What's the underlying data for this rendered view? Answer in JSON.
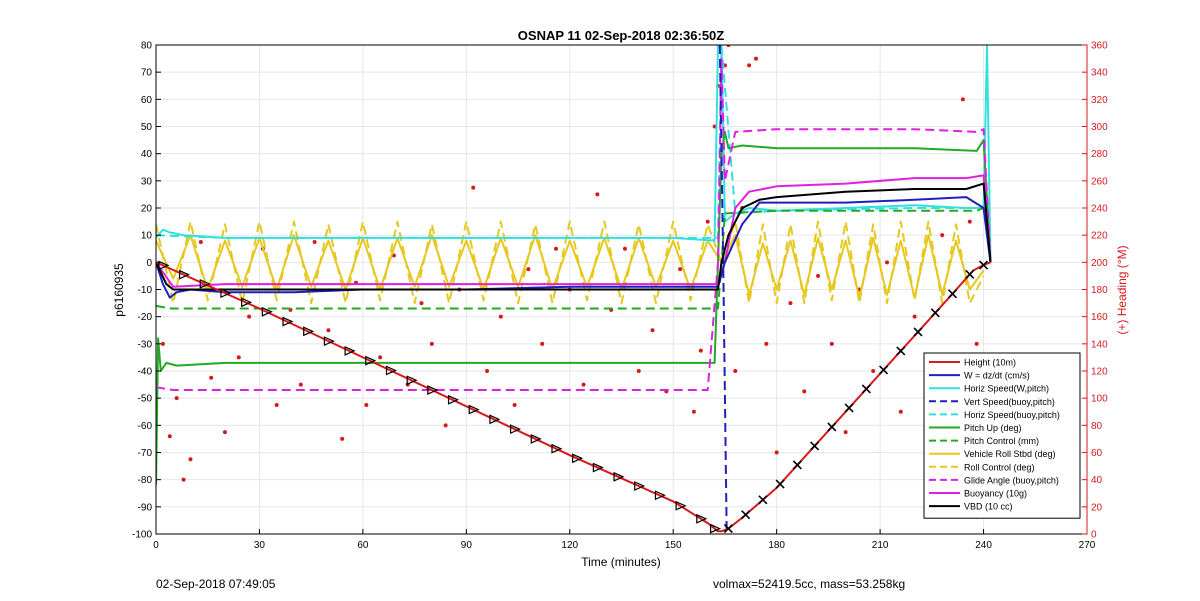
{
  "chart_data": {
    "type": "line",
    "title": "OSNAP 11 02-Sep-2018 02:36:50Z",
    "xlabel": "Time (minutes)",
    "ylabel": "p6160935",
    "y2label": "(+) Heading (°M)",
    "xlim": [
      0,
      270
    ],
    "ylim": [
      -100,
      80
    ],
    "y2lim": [
      0,
      360
    ],
    "xticks": [
      0,
      30,
      60,
      90,
      120,
      150,
      180,
      210,
      240,
      270
    ],
    "yticks": [
      -100,
      -90,
      -80,
      -70,
      -60,
      -50,
      -40,
      -30,
      -20,
      -10,
      0,
      10,
      20,
      30,
      40,
      50,
      60,
      70,
      80
    ],
    "y2ticks": [
      0,
      20,
      40,
      60,
      80,
      100,
      120,
      140,
      160,
      180,
      200,
      220,
      240,
      260,
      280,
      300,
      320,
      340,
      360
    ],
    "grid": true,
    "legend_position": "bottom-right",
    "colors": {
      "red": "#d7191c",
      "blue": "#1f1fbf",
      "cyan": "#33e0e0",
      "green": "#22aa22",
      "yellow": "#e6c820",
      "magenta": "#e020e0",
      "black": "#000000"
    },
    "series": [
      {
        "name": "Height (10m)",
        "color": "#d7191c",
        "dash": false,
        "x": [
          0,
          30,
          60,
          90,
          120,
          150,
          160,
          163,
          164,
          166,
          170,
          180,
          190,
          200,
          210,
          220,
          230,
          237,
          240,
          242
        ],
        "y": [
          0,
          -17,
          -35,
          -53,
          -71,
          -88,
          -96,
          -99,
          -99,
          -98,
          -94,
          -83,
          -69,
          -55,
          -41,
          -27,
          -13,
          -3,
          -1,
          0
        ]
      },
      {
        "name": "W = dz/dt (cm/s)",
        "color": "#1f1fbf",
        "dash": false,
        "x": [
          0,
          2,
          4,
          6,
          10,
          20,
          40,
          60,
          90,
          120,
          150,
          163,
          165,
          170,
          175,
          180,
          200,
          220,
          235,
          240,
          242
        ],
        "y": [
          0,
          -8,
          -13,
          -11,
          -10,
          -11,
          -11,
          -10,
          -10,
          -9,
          -9,
          -9,
          0,
          14,
          22,
          22,
          22,
          23,
          24,
          20,
          0
        ]
      },
      {
        "name": "Horiz Speed(W,pitch)",
        "color": "#33e0e0",
        "dash": false,
        "x": [
          0,
          2,
          4,
          8,
          20,
          40,
          60,
          90,
          120,
          150,
          162,
          163,
          164,
          165,
          168,
          172,
          180,
          200,
          220,
          235,
          240,
          241,
          242
        ],
        "y": [
          9,
          12,
          11,
          10,
          9,
          9,
          9,
          9,
          9,
          9,
          8,
          80,
          80,
          15,
          18,
          20,
          19,
          20,
          21,
          20,
          20,
          80,
          0
        ]
      },
      {
        "name": "Vert Speed(buoy,pitch)",
        "color": "#1f1fbf",
        "dash": true,
        "x": [
          163.5,
          164.5,
          165.5
        ],
        "y": [
          80,
          0,
          -100
        ]
      },
      {
        "name": "Horiz Speed(buoy,pitch)",
        "color": "#33e0e0",
        "dash": true,
        "x": [
          0,
          20,
          60,
          120,
          160,
          163,
          164,
          168,
          180,
          220,
          240,
          242
        ],
        "y": [
          10,
          9,
          9,
          9,
          9,
          9,
          80,
          18,
          19,
          20,
          20,
          0
        ]
      },
      {
        "name": "Pitch Up (deg)",
        "color": "#22aa22",
        "dash": false,
        "x": [
          0,
          0.6,
          1.4,
          3,
          6,
          20,
          40,
          60,
          90,
          120,
          150,
          162,
          163,
          164,
          165,
          166,
          170,
          180,
          200,
          220,
          238,
          240,
          242
        ],
        "y": [
          -82,
          -28,
          -40,
          -37,
          -38,
          -37,
          -37,
          -37,
          -37,
          -37,
          -37,
          -37,
          0,
          40,
          48,
          42,
          43,
          42,
          42,
          42,
          41,
          45,
          0
        ]
      },
      {
        "name": "Pitch Control (mm)",
        "color": "#22aa22",
        "dash": true,
        "x": [
          0,
          4,
          20,
          60,
          120,
          163,
          164,
          165,
          180,
          220,
          238,
          240,
          242
        ],
        "y": [
          -16,
          -17,
          -17,
          -17,
          -17,
          -17,
          0,
          18,
          19,
          19,
          19,
          20,
          0
        ]
      },
      {
        "name": "Vehicle Roll Stbd (deg)",
        "color": "#e6c820",
        "dash": false,
        "x": [
          0,
          5,
          10,
          15,
          20,
          25,
          30,
          35,
          40,
          45,
          50,
          55,
          60,
          65,
          70,
          75,
          80,
          85,
          90,
          95,
          100,
          105,
          110,
          115,
          120,
          125,
          130,
          135,
          140,
          145,
          150,
          155,
          160,
          164,
          168,
          172,
          176,
          180,
          184,
          188,
          192,
          196,
          200,
          204,
          208,
          212,
          216,
          220,
          224,
          228,
          232,
          236,
          240
        ],
        "y": [
          8,
          -6,
          10,
          -10,
          8,
          -9,
          9,
          -10,
          10,
          -9,
          8,
          -10,
          9,
          -10,
          9,
          -9,
          10,
          -9,
          8,
          -10,
          9,
          -9,
          10,
          -10,
          8,
          -9,
          9,
          -10,
          9,
          -9,
          8,
          -10,
          8,
          0,
          10,
          -12,
          7,
          -10,
          8,
          -12,
          9,
          -10,
          8,
          -13,
          9,
          -12,
          8,
          -13,
          10,
          -12,
          8,
          -10,
          -3
        ]
      },
      {
        "name": "Roll Control (deg)",
        "color": "#e6c820",
        "dash": true,
        "x": [
          0,
          5,
          10,
          15,
          20,
          25,
          30,
          35,
          40,
          45,
          50,
          55,
          60,
          65,
          70,
          75,
          80,
          85,
          90,
          95,
          100,
          105,
          110,
          115,
          120,
          125,
          130,
          135,
          140,
          145,
          150,
          155,
          160,
          164,
          168,
          172,
          176,
          180,
          184,
          188,
          192,
          196,
          200,
          204,
          208,
          212,
          216,
          220,
          224,
          228,
          232,
          236,
          240
        ],
        "y": [
          14,
          -15,
          15,
          -14,
          14,
          -15,
          15,
          -14,
          15,
          -15,
          14,
          -15,
          15,
          -14,
          15,
          -15,
          14,
          -15,
          15,
          -14,
          15,
          -15,
          14,
          -15,
          15,
          -14,
          15,
          -15,
          14,
          -15,
          15,
          -14,
          14,
          0,
          15,
          -15,
          14,
          -15,
          14,
          -15,
          15,
          -14,
          15,
          -15,
          14,
          -15,
          15,
          -14,
          15,
          -15,
          14,
          -15,
          -5
        ]
      },
      {
        "name": "Glide Angle (buoy,pitch)",
        "color": "#e020e0",
        "dash": true,
        "x": [
          0,
          5,
          20,
          60,
          120,
          160,
          163,
          164,
          165,
          168,
          180,
          200,
          220,
          238,
          240,
          242
        ],
        "y": [
          -46,
          -47,
          -47,
          -47,
          -47,
          -47,
          0,
          75,
          30,
          48,
          49,
          49,
          49,
          48,
          49,
          0
        ]
      },
      {
        "name": "Buoyancy (10g)",
        "color": "#e020e0",
        "dash": false,
        "x": [
          0,
          5,
          20,
          60,
          120,
          162,
          163,
          165,
          168,
          172,
          180,
          200,
          220,
          235,
          240,
          242
        ],
        "y": [
          0,
          -9,
          -8,
          -8,
          -8,
          -8,
          -8,
          0,
          20,
          26,
          28,
          29,
          31,
          31,
          32,
          0
        ]
      },
      {
        "name": "VBD (10 cc)",
        "color": "#000000",
        "dash": false,
        "x": [
          0,
          3,
          5,
          20,
          60,
          120,
          160,
          163,
          164,
          166,
          170,
          175,
          180,
          200,
          220,
          235,
          240,
          241,
          242
        ],
        "y": [
          0,
          -8,
          -10,
          -10,
          -10,
          -10,
          -10,
          -10,
          0,
          10,
          20,
          23,
          24,
          26,
          27,
          27,
          29,
          15,
          0
        ]
      }
    ],
    "heading_points": {
      "name": "Heading",
      "t": [
        2,
        4,
        6,
        8,
        10,
        13,
        16,
        20,
        24,
        27,
        31,
        35,
        39,
        42,
        46,
        50,
        54,
        58,
        61,
        65,
        69,
        73,
        77,
        80,
        84,
        88,
        92,
        96,
        100,
        104,
        108,
        112,
        116,
        120,
        124,
        128,
        132,
        136,
        140,
        144,
        148,
        152,
        156,
        158,
        160,
        162,
        163,
        165,
        166,
        168,
        170,
        172,
        174,
        177,
        180,
        184,
        188,
        192,
        196,
        200,
        204,
        208,
        212,
        216,
        220,
        224,
        228,
        232,
        234,
        236,
        238
      ],
      "h": [
        140,
        72,
        100,
        40,
        55,
        215,
        115,
        75,
        130,
        160,
        210,
        95,
        165,
        110,
        215,
        150,
        70,
        185,
        95,
        130,
        205,
        110,
        170,
        140,
        80,
        180,
        255,
        120,
        160,
        95,
        195,
        140,
        210,
        180,
        110,
        250,
        165,
        210,
        120,
        150,
        105,
        195,
        90,
        135,
        230,
        300,
        330,
        345,
        360,
        120,
        240,
        345,
        350,
        140,
        60,
        170,
        105,
        190,
        140,
        75,
        180,
        120,
        200,
        90,
        160,
        130,
        220,
        100,
        320,
        230,
        140
      ]
    },
    "markers": {
      "down_triangles_x": [
        2,
        8,
        14,
        20,
        26,
        32,
        38,
        44,
        50,
        56,
        62,
        68,
        74,
        80,
        86,
        92,
        98,
        104,
        110,
        116,
        122,
        128,
        134,
        140,
        146,
        152,
        158,
        162
      ],
      "up_x_marks": [
        166,
        171,
        176,
        181,
        186,
        191,
        196,
        201,
        206,
        211,
        216,
        221,
        226,
        231,
        236,
        240
      ]
    },
    "footer_left": "02-Sep-2018 07:49:05",
    "footer_right": "volmax=52419.5cc, mass=53.258kg"
  }
}
